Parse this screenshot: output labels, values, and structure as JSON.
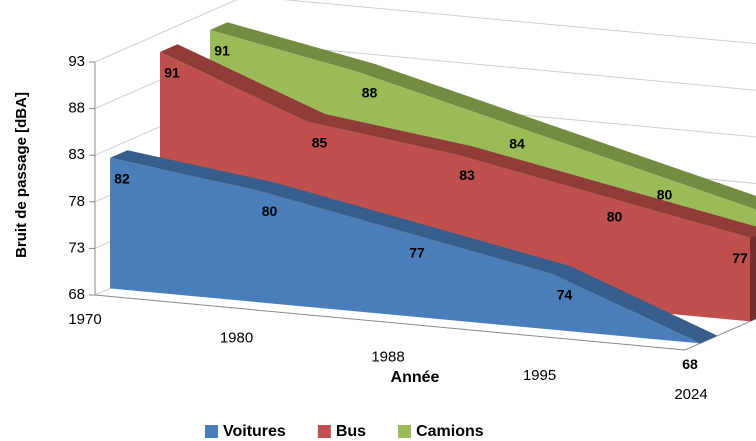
{
  "chart_data": {
    "type": "area3d",
    "categories": [
      "1970",
      "1980",
      "1988",
      "1995",
      "2024"
    ],
    "series": [
      {
        "name": "Voitures",
        "color": "#4a7ebb",
        "values": [
          82,
          80,
          77,
          74,
          68
        ]
      },
      {
        "name": "Bus",
        "color": "#c0504d",
        "values": [
          91,
          85,
          83,
          80,
          77
        ]
      },
      {
        "name": "Camions",
        "color": "#9bbb59",
        "values": [
          91,
          88,
          84,
          80,
          76
        ]
      }
    ],
    "ylim": [
      68,
      93
    ],
    "yticks": [
      68,
      73,
      78,
      83,
      88,
      93
    ],
    "grid": true,
    "y_label": "Bruit de passage  [dBA]",
    "x_label": "Année",
    "legend": "bottom"
  }
}
